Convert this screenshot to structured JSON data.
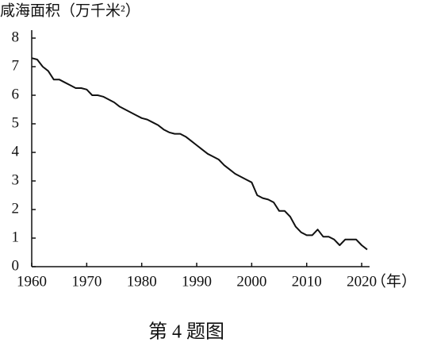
{
  "chart_data": {
    "type": "line",
    "title": "咸海面积（万千米²）",
    "x_label": "（年）",
    "caption": "第 4 题图",
    "x": [
      1960,
      1961,
      1962,
      1963,
      1964,
      1965,
      1966,
      1967,
      1968,
      1969,
      1970,
      1971,
      1972,
      1973,
      1974,
      1975,
      1976,
      1977,
      1978,
      1979,
      1980,
      1981,
      1982,
      1983,
      1984,
      1985,
      1986,
      1987,
      1988,
      1989,
      1990,
      1991,
      1992,
      1993,
      1994,
      1995,
      1996,
      1997,
      1998,
      1999,
      2000,
      2001,
      2002,
      2003,
      2004,
      2005,
      2006,
      2007,
      2008,
      2009,
      2010,
      2011,
      2012,
      2013,
      2014,
      2015,
      2016,
      2017,
      2018,
      2019,
      2020,
      2021
    ],
    "series": [
      {
        "color": "#111111",
        "values": [
          7.3,
          7.25,
          7.0,
          6.85,
          6.55,
          6.55,
          6.45,
          6.35,
          6.25,
          6.25,
          6.2,
          6.0,
          6.0,
          5.95,
          5.85,
          5.75,
          5.6,
          5.5,
          5.4,
          5.3,
          5.2,
          5.15,
          5.05,
          4.95,
          4.8,
          4.7,
          4.65,
          4.65,
          4.55,
          4.4,
          4.25,
          4.1,
          3.95,
          3.85,
          3.75,
          3.55,
          3.4,
          3.25,
          3.15,
          3.05,
          2.95,
          2.5,
          2.4,
          2.35,
          2.25,
          1.95,
          1.95,
          1.75,
          1.4,
          1.2,
          1.1,
          1.1,
          1.3,
          1.05,
          1.05,
          0.95,
          0.75,
          0.95,
          0.95,
          0.95,
          0.75,
          0.6
        ]
      }
    ],
    "xlim": [
      1960,
      2021
    ],
    "xticks": [
      1960,
      1970,
      1980,
      1990,
      2000,
      2010,
      2020
    ],
    "ylim": [
      0,
      8
    ],
    "yticks": [
      0,
      1,
      2,
      3,
      4,
      5,
      6,
      7,
      8
    ]
  }
}
